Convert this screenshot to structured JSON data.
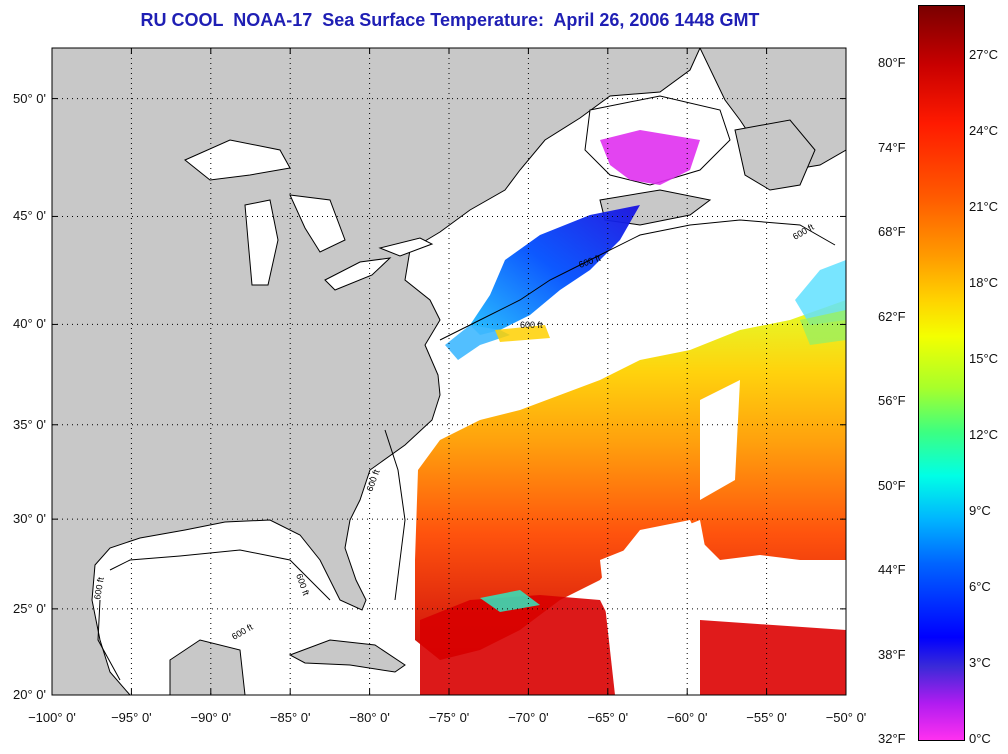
{
  "title": "RU COOL  NOAA-17  Sea Surface Temperature:  April 26, 2006 1448 GMT",
  "map": {
    "lon_range": [
      -100,
      -50
    ],
    "lat_range": [
      20,
      52
    ],
    "contour_label": "600 ft",
    "colors": {
      "land": "#c8c8c8",
      "cloud_or_nodata": "#ffffff",
      "coast": "#000000"
    }
  },
  "axes": {
    "lat_ticks": [
      {
        "value": 50,
        "label": "50° 0'"
      },
      {
        "value": 45,
        "label": "45° 0'"
      },
      {
        "value": 40,
        "label": "40° 0'"
      },
      {
        "value": 35,
        "label": "35° 0'"
      },
      {
        "value": 30,
        "label": "30° 0'"
      },
      {
        "value": 25,
        "label": "25° 0'"
      },
      {
        "value": 20,
        "label": "20° 0'"
      }
    ],
    "lon_ticks": [
      {
        "value": -100,
        "label": "−100° 0'"
      },
      {
        "value": -95,
        "label": "−95° 0'"
      },
      {
        "value": -90,
        "label": "−90° 0'"
      },
      {
        "value": -85,
        "label": "−85° 0'"
      },
      {
        "value": -80,
        "label": "−80° 0'"
      },
      {
        "value": -75,
        "label": "−75° 0'"
      },
      {
        "value": -70,
        "label": "−70° 0'"
      },
      {
        "value": -65,
        "label": "−65° 0'"
      },
      {
        "value": -60,
        "label": "−60° 0'"
      },
      {
        "value": -55,
        "label": "−55° 0'"
      },
      {
        "value": -50,
        "label": "−50° 0'"
      }
    ]
  },
  "colorbar": {
    "fahrenheit": [
      "80°F",
      "74°F",
      "68°F",
      "62°F",
      "56°F",
      "50°F",
      "44°F",
      "38°F",
      "32°F"
    ],
    "celsius": [
      "27°C",
      "24°C",
      "21°C",
      "18°C",
      "15°C",
      "12°C",
      "9°C",
      "6°C",
      "3°C",
      "0°C"
    ],
    "range_celsius": [
      0,
      29
    ]
  }
}
